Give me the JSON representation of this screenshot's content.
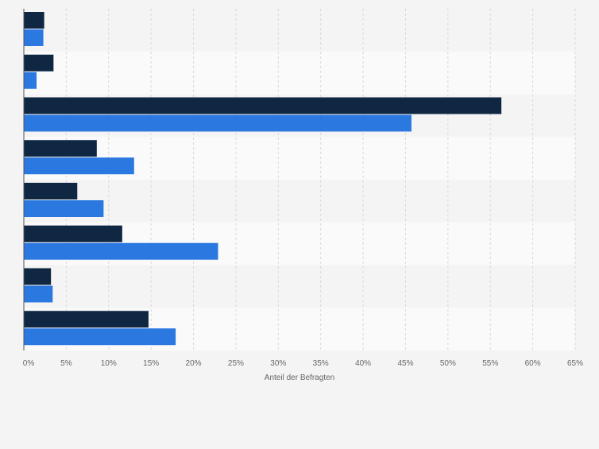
{
  "chart_data": {
    "type": "bar",
    "orientation": "horizontal",
    "categories": [
      "",
      "",
      "",
      "",
      "",
      "",
      "",
      ""
    ],
    "series": [
      {
        "values": [
          2.4,
          3.5,
          56.3,
          8.6,
          6.3,
          11.6,
          3.2,
          14.7
        ]
      },
      {
        "values": [
          2.3,
          1.5,
          45.7,
          13.0,
          9.4,
          22.9,
          3.4,
          17.9
        ]
      }
    ],
    "xlabel": "Anteil der Befragten",
    "xlim": [
      0,
      65
    ],
    "xticks": [
      0,
      5,
      10,
      15,
      20,
      25,
      30,
      35,
      40,
      45,
      50,
      55,
      60,
      65
    ],
    "tick_labels": [
      "0%",
      "5%",
      "10%",
      "15%",
      "20%",
      "25%",
      "30%",
      "35%",
      "40%",
      "45%",
      "50%",
      "55%",
      "60%",
      "65%"
    ],
    "grid": true,
    "legend": "none"
  },
  "colors": {
    "page_background": "#f4f4f4",
    "band_light": "#fafafa",
    "band_dark": "#f4f4f4",
    "gridline": "#d8d8d8",
    "axis": "#555555",
    "series_1": "#0f2742",
    "series_2": "#2b78e0",
    "tick_text": "#666666"
  }
}
